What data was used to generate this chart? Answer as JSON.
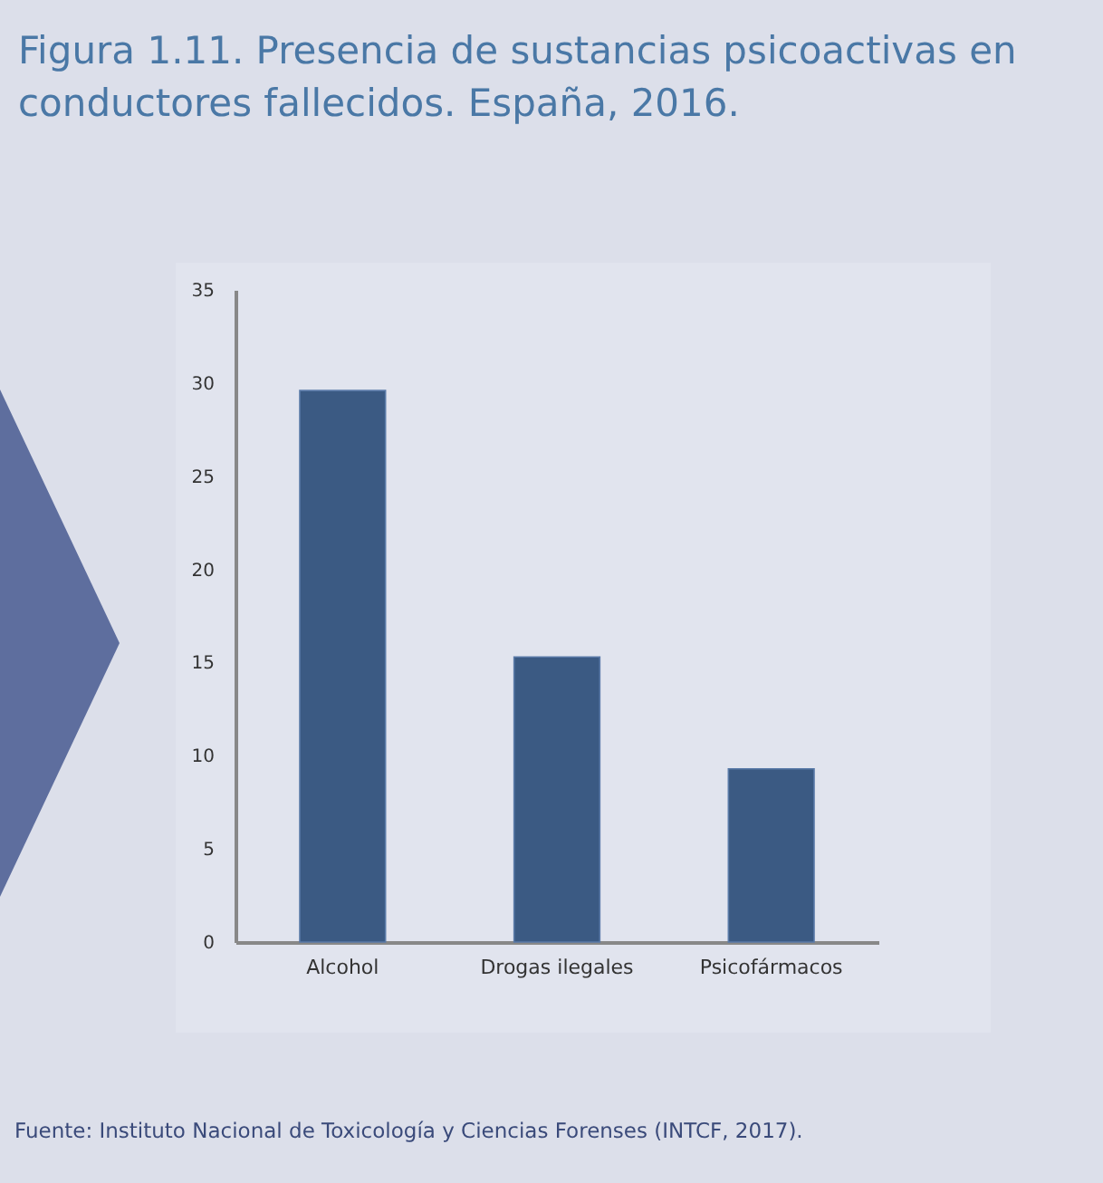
{
  "chart_data": {
    "type": "bar",
    "title": "Figura 1.11. Presencia de sustancias psicoactivas en conductores fallecidos. España, 2016.",
    "categories": [
      "Alcohol",
      "Drogas ilegales",
      "Psicofármacos"
    ],
    "values": [
      29.6,
      15.3,
      9.3
    ],
    "color": "#3b5a83",
    "ylim": [
      0,
      35
    ],
    "yticks": [
      0,
      5,
      10,
      15,
      20,
      25,
      30,
      35
    ],
    "grid": false,
    "annotations": [
      "Fuente: Instituto Nacional de Toxicología y Ciencias Forenses (INTCF, 2017)."
    ]
  }
}
